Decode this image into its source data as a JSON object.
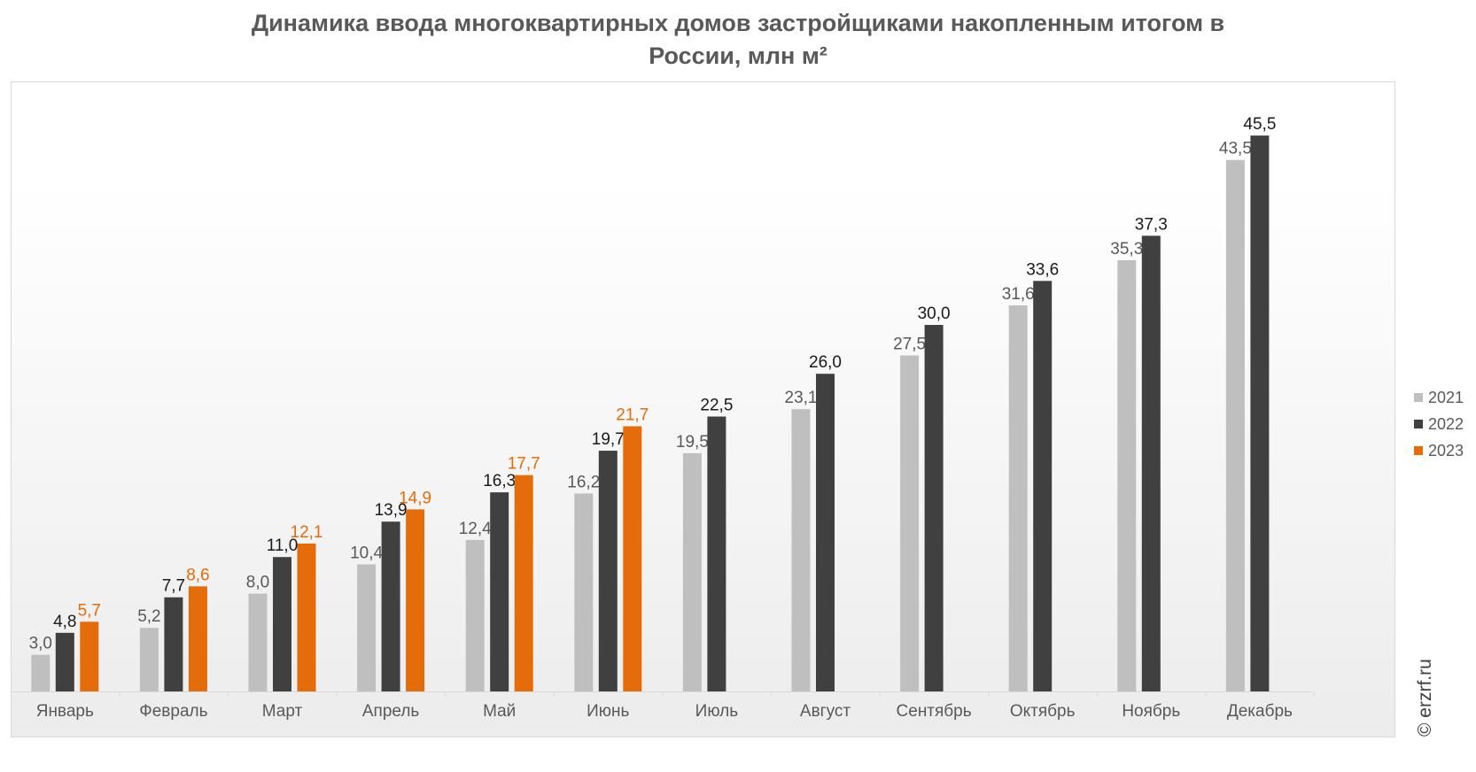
{
  "chart_data": {
    "type": "bar",
    "title": [
      "Динамика ввода многоквартирных домов застройщиками накопленным итогом в",
      "России, млн м²"
    ],
    "categories": [
      "Январь",
      "Февраль",
      "Март",
      "Апрель",
      "Май",
      "Июнь",
      "Июль",
      "Август",
      "Сентябрь",
      "Октябрь",
      "Ноябрь",
      "Декабрь"
    ],
    "series": [
      {
        "name": "2021",
        "color": "#bfbfbf",
        "label_color": "#595959",
        "label_weight": "normal",
        "values": [
          3.0,
          5.2,
          8.0,
          10.4,
          12.4,
          16.2,
          19.5,
          23.1,
          27.5,
          31.6,
          35.3,
          43.5
        ],
        "labels": [
          "3,0",
          "5,2",
          "8,0",
          "10,4",
          "12,4",
          "16,2",
          "19,5",
          "23,1",
          "27,5",
          "31,6",
          "35,3",
          "43,5"
        ]
      },
      {
        "name": "2022",
        "color": "#404040",
        "label_color": "#1a1a1a",
        "label_weight": "normal",
        "values": [
          4.8,
          7.7,
          11.0,
          13.9,
          16.3,
          19.7,
          22.5,
          26.0,
          30.0,
          33.6,
          37.3,
          45.5
        ],
        "labels": [
          "4,8",
          "7,7",
          "11,0",
          "13,9",
          "16,3",
          "19,7",
          "22,5",
          "26,0",
          "30,0",
          "33,6",
          "37,3",
          "45,5"
        ]
      },
      {
        "name": "2023",
        "color": "#e46c0a",
        "label_color": "#e46c0a",
        "label_weight": "normal",
        "values": [
          5.7,
          8.6,
          12.1,
          14.9,
          17.7,
          21.7,
          null,
          null,
          null,
          null,
          null,
          null
        ],
        "labels": [
          "5,7",
          "8,6",
          "12,1",
          "14,9",
          "17,7",
          "21,7",
          null,
          null,
          null,
          null,
          null,
          null
        ]
      }
    ],
    "ylim": [
      0,
      48
    ],
    "grid": false,
    "legend_position": "right"
  },
  "copyright": "© erzrf.ru"
}
